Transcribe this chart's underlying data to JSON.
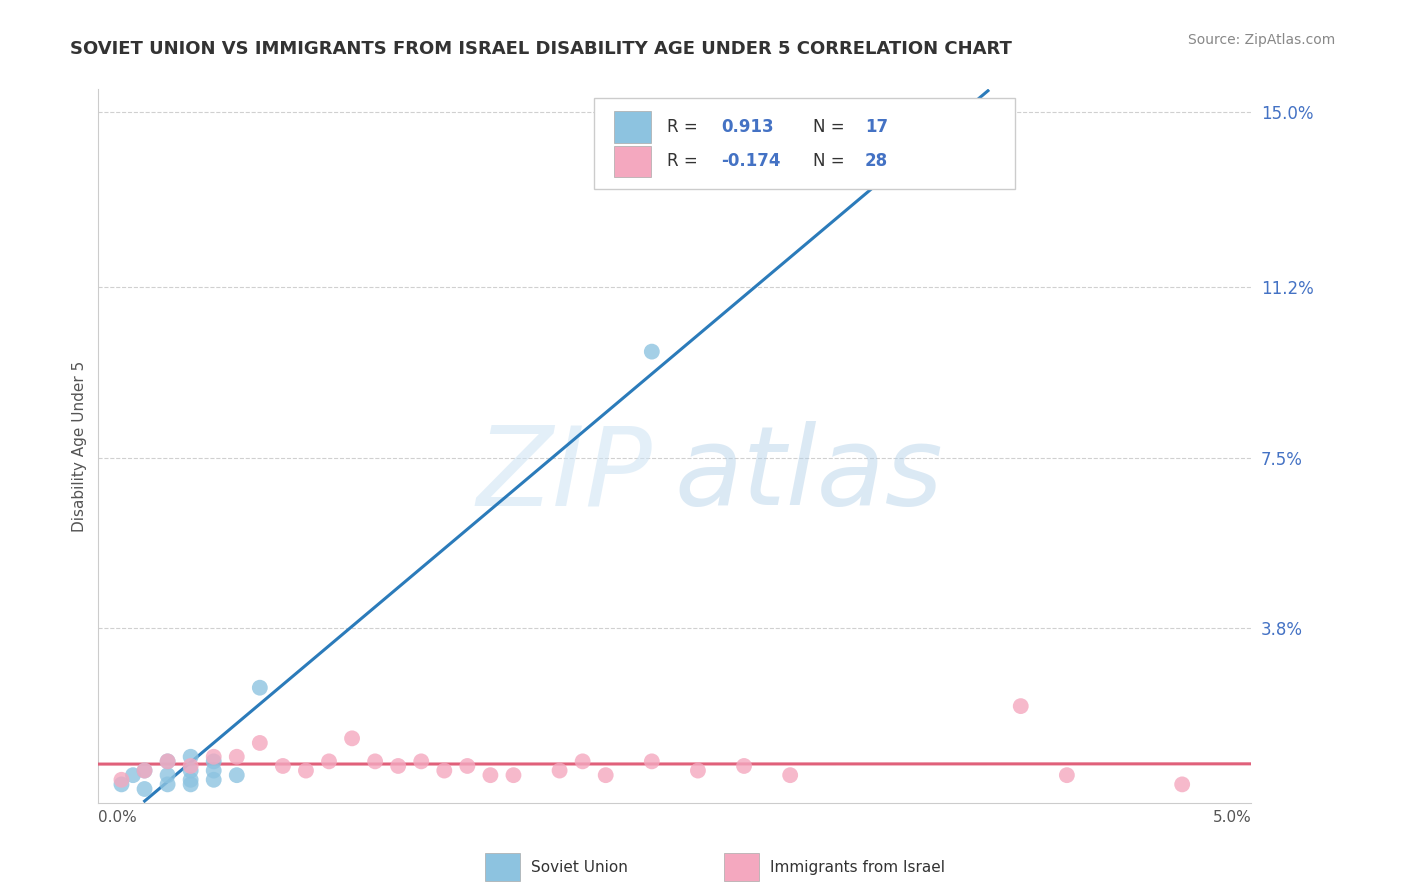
{
  "title": "SOVIET UNION VS IMMIGRANTS FROM ISRAEL DISABILITY AGE UNDER 5 CORRELATION CHART",
  "source": "Source: ZipAtlas.com",
  "xmin": 0.0,
  "xmax": 0.05,
  "ymin": 0.0,
  "ymax": 0.155,
  "ylabel_ticks": [
    0.0,
    0.038,
    0.075,
    0.112,
    0.15
  ],
  "ylabel_labels": [
    "",
    "3.8%",
    "7.5%",
    "11.2%",
    "15.0%"
  ],
  "blue_scatter_color": "#8dc3e0",
  "pink_scatter_color": "#f4a8bf",
  "blue_line_color": "#2b7bba",
  "pink_line_color": "#e0607a",
  "grid_color": "#d0d0d0",
  "soviet_R": 0.913,
  "soviet_N": 17,
  "israel_R": -0.174,
  "israel_N": 28,
  "soviet_x": [
    0.001,
    0.0015,
    0.002,
    0.002,
    0.003,
    0.003,
    0.003,
    0.004,
    0.004,
    0.004,
    0.004,
    0.005,
    0.005,
    0.005,
    0.006,
    0.007,
    0.024
  ],
  "soviet_y": [
    0.004,
    0.006,
    0.003,
    0.007,
    0.004,
    0.006,
    0.009,
    0.004,
    0.005,
    0.007,
    0.01,
    0.005,
    0.007,
    0.009,
    0.006,
    0.025,
    0.098
  ],
  "israel_x": [
    0.001,
    0.002,
    0.003,
    0.004,
    0.005,
    0.006,
    0.007,
    0.008,
    0.009,
    0.01,
    0.011,
    0.012,
    0.013,
    0.014,
    0.015,
    0.016,
    0.017,
    0.018,
    0.02,
    0.021,
    0.022,
    0.024,
    0.026,
    0.028,
    0.03,
    0.04,
    0.042,
    0.047
  ],
  "israel_y": [
    0.005,
    0.007,
    0.009,
    0.008,
    0.01,
    0.01,
    0.013,
    0.008,
    0.007,
    0.009,
    0.014,
    0.009,
    0.008,
    0.009,
    0.007,
    0.008,
    0.006,
    0.006,
    0.007,
    0.009,
    0.006,
    0.009,
    0.007,
    0.008,
    0.006,
    0.021,
    0.006,
    0.004
  ],
  "bottom_legend_soviet": "Soviet Union",
  "bottom_legend_israel": "Immigrants from Israel",
  "ylabel": "Disability Age Under 5",
  "r_color": "#4472c4",
  "label_color": "#555555",
  "title_color": "#333333",
  "background_color": "#ffffff"
}
